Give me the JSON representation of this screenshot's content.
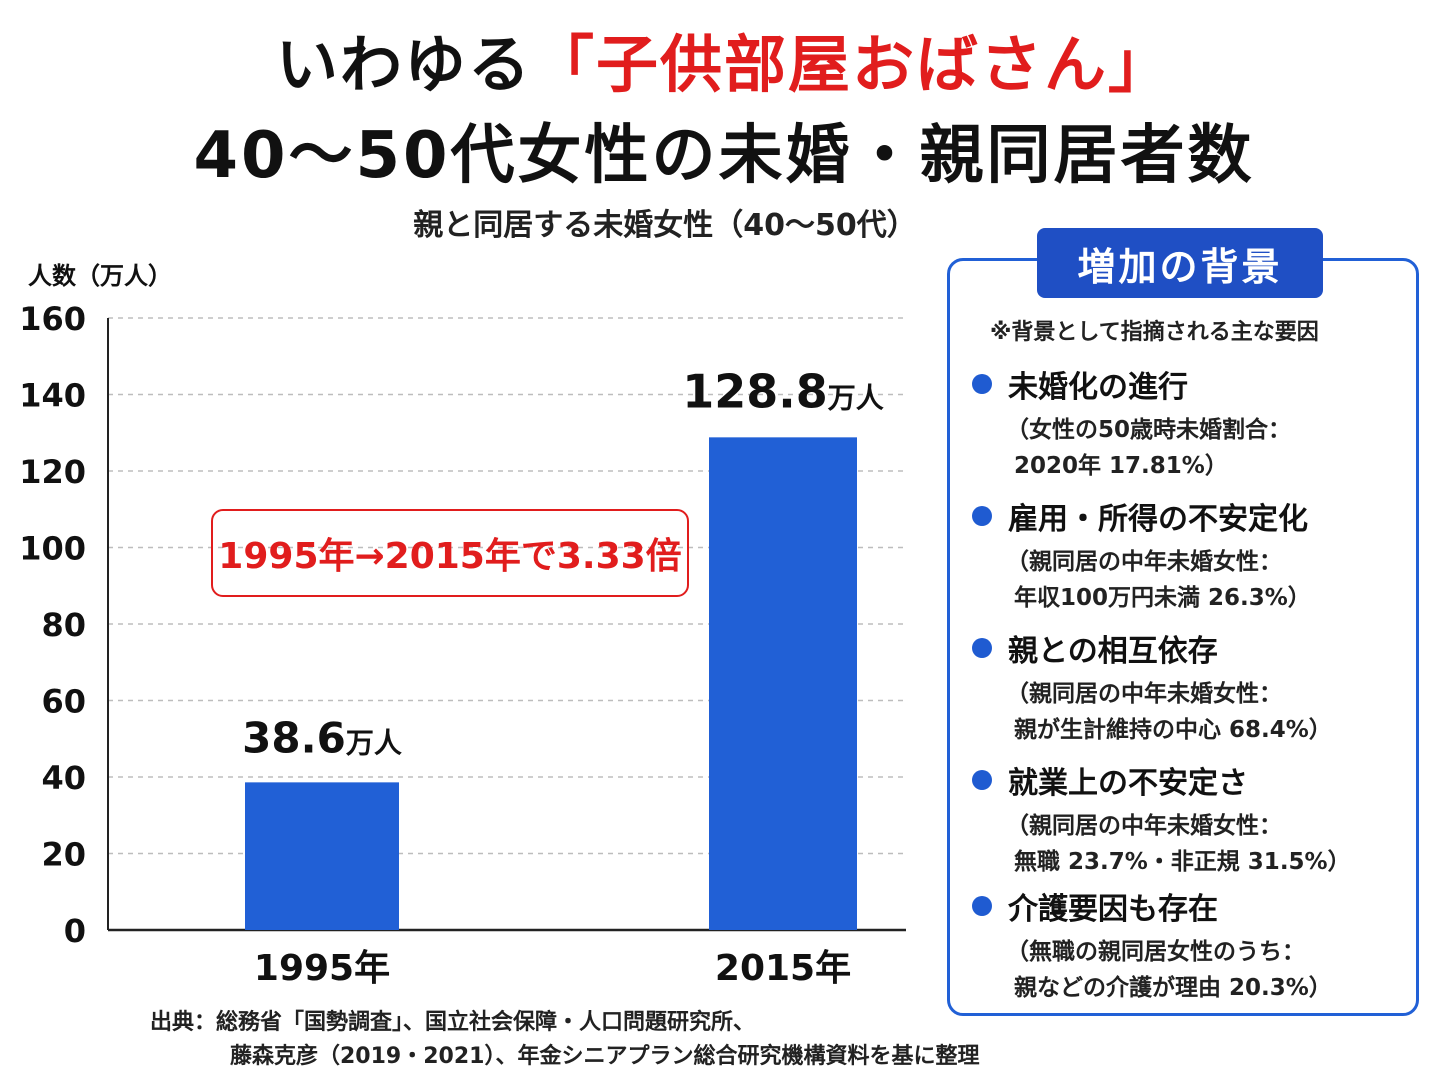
{
  "title": {
    "prefix": "いわゆる",
    "highlight": "「子供部屋おばさん」",
    "line2": "40～50代女性の未婚・親同居者数"
  },
  "colors": {
    "bar": "#2160d6",
    "accent_red": "#e11d1d",
    "panel_blue": "#1f4fc4"
  },
  "chart_data": {
    "type": "bar",
    "title": "親と同居する未婚女性（40～50代）",
    "ylabel": "人数（万人）",
    "xlabel": "",
    "categories": [
      "1995年",
      "2015年"
    ],
    "values": [
      38.6,
      128.8
    ],
    "data_labels": [
      {
        "value": "38.6",
        "unit": "万人"
      },
      {
        "value": "128.8",
        "unit": "万人"
      }
    ],
    "ylim": [
      0,
      160
    ],
    "yticks": [
      0,
      20,
      40,
      60,
      80,
      100,
      120,
      140,
      160
    ],
    "grid": true,
    "annotation": "1995年→2015年で3.33倍"
  },
  "background_panel": {
    "title": "増加の背景",
    "note": "※背景として指摘される主な要因",
    "factors": [
      {
        "heading": "未婚化の進行",
        "line1": "（女性の50歳時未婚割合：",
        "line2": "2020年 17.81%）"
      },
      {
        "heading": "雇用・所得の不安定化",
        "line1": "（親同居の中年未婚女性：",
        "line2": "年収100万円未満 26.3%）"
      },
      {
        "heading": "親との相互依存",
        "line1": "（親同居の中年未婚女性：",
        "line2": "親が生計維持の中心 68.4%）"
      },
      {
        "heading": "就業上の不安定さ",
        "line1": "（親同居の中年未婚女性：",
        "line2": "無職 23.7%・非正規 31.5%）"
      },
      {
        "heading": "介護要因も存在",
        "line1": "（無職の親同居女性のうち：",
        "line2": "親などの介護が理由 20.3%）"
      }
    ]
  },
  "source": {
    "line1": "出典：総務省「国勢調査」、国立社会保障・人口問題研究所、",
    "line2": "藤森克彦（2019・2021）、年金シニアプラン総合研究機構資料を基に整理"
  }
}
